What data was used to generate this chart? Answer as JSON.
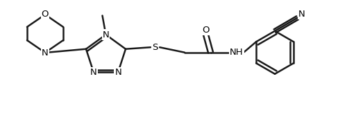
{
  "background_color": "#ffffff",
  "line_color": "#1a1a1a",
  "line_width": 1.8,
  "font_size": 9.5,
  "fig_width": 5.0,
  "fig_height": 1.66,
  "dpi": 100,
  "xlim": [
    0,
    10
  ],
  "ylim": [
    0,
    3.32
  ]
}
